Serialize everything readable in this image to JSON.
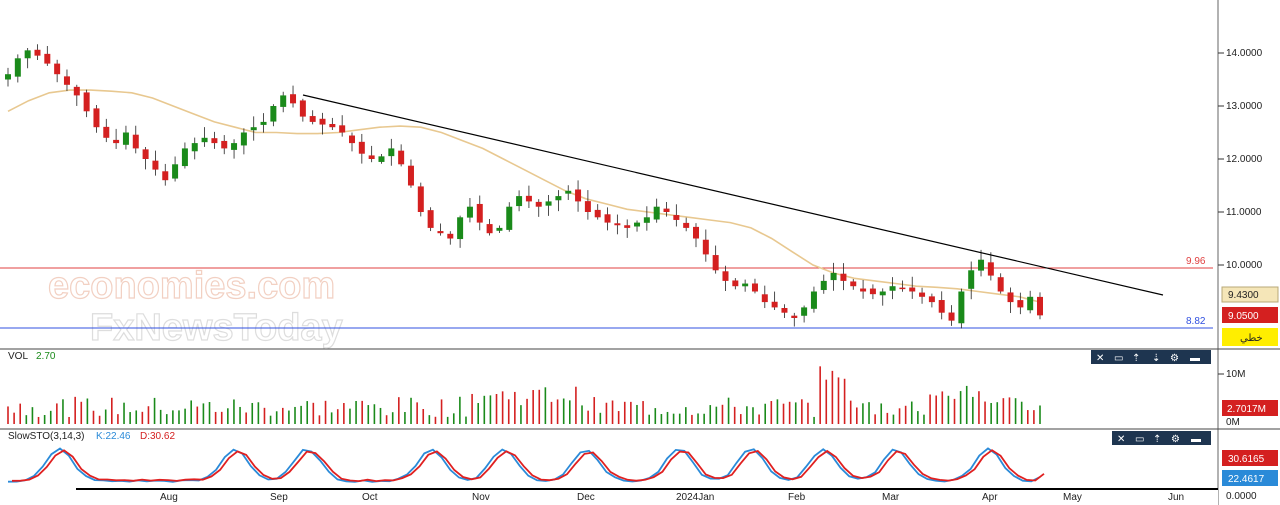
{
  "watermark": {
    "line1": "economies.com",
    "line2": "FxNewsToday"
  },
  "price_axis": {
    "ticks": [
      "14.0000",
      "13.0000",
      "12.0000",
      "11.0000",
      "10.0000"
    ],
    "last_price": "9.4300",
    "current_price": "9.0500",
    "tool_label": "خطي"
  },
  "levels": {
    "resistance": "9.96",
    "support": "8.82"
  },
  "time_axis": [
    "Aug",
    "Sep",
    "Oct",
    "Nov",
    "Dec",
    "2024Jan",
    "Feb",
    "Mar",
    "Apr",
    "May",
    "Jun"
  ],
  "volume_panel": {
    "title": "VOL",
    "value": "2.70",
    "axis_top": "10M",
    "axis_zero": "0M",
    "current": "2.7017M"
  },
  "stochastic_panel": {
    "title": "SlowSTO(3,14,3)",
    "k_text": "K:22.46",
    "d_text": "D:30.62",
    "d_value": "30.6165",
    "k_value": "22.4617",
    "axis_zero": "0.0000"
  },
  "colors": {
    "bull": "#1a8a1a",
    "bear": "#d42020",
    "ma": "#e8c890",
    "resistance": "#e04040",
    "support": "#3050e0",
    "k_line": "#2a8ad8",
    "d_line": "#e02020",
    "toolbar": "#1e3550"
  },
  "chart_data": {
    "type": "candlestick",
    "y_range": [
      8.6,
      14.3
    ],
    "close_path": [
      13.6,
      13.9,
      14.05,
      13.95,
      13.8,
      13.6,
      13.4,
      13.2,
      12.9,
      12.6,
      12.4,
      12.3,
      12.5,
      12.2,
      12.0,
      11.8,
      11.6,
      11.9,
      12.2,
      12.3,
      12.4,
      12.3,
      12.2,
      12.3,
      12.5,
      12.6,
      12.7,
      13.0,
      13.2,
      13.05,
      12.8,
      12.7,
      12.65,
      12.6,
      12.5,
      12.3,
      12.1,
      12.0,
      12.05,
      12.2,
      11.9,
      11.5,
      11.0,
      10.7,
      10.6,
      10.5,
      10.9,
      11.1,
      10.8,
      10.6,
      10.7,
      11.1,
      11.3,
      11.2,
      11.1,
      11.2,
      11.3,
      11.4,
      11.2,
      11.0,
      10.9,
      10.8,
      10.75,
      10.7,
      10.8,
      10.9,
      11.1,
      11.0,
      10.85,
      10.7,
      10.5,
      10.2,
      9.9,
      9.7,
      9.6,
      9.65,
      9.5,
      9.3,
      9.2,
      9.1,
      9.0,
      9.2,
      9.5,
      9.7,
      9.85,
      9.7,
      9.6,
      9.5,
      9.45,
      9.5,
      9.6,
      9.55,
      9.5,
      9.4,
      9.3,
      9.1,
      8.95,
      9.5,
      9.9,
      10.1,
      9.8,
      9.5,
      9.3,
      9.2,
      9.4,
      9.05
    ],
    "ma_path": [
      12.9,
      13.1,
      13.25,
      13.3,
      13.3,
      13.28,
      13.25,
      13.15,
      13.0,
      12.85,
      12.7,
      12.6,
      12.5,
      12.5,
      12.48,
      12.48,
      12.5,
      12.55,
      12.6,
      12.62,
      12.6,
      12.5,
      12.35,
      12.2,
      12.0,
      11.8,
      11.6,
      11.4,
      11.25,
      11.15,
      11.05,
      11.0,
      10.95,
      10.9,
      10.85,
      10.8,
      10.7,
      10.5,
      10.25,
      10.0,
      9.85,
      9.75,
      9.7,
      9.65,
      9.6,
      9.58,
      9.55,
      9.5,
      9.45,
      9.4,
      9.3
    ],
    "trendline": {
      "start": [
        "2023-09",
        13.25
      ],
      "end": [
        "2024-05",
        9.5
      ]
    },
    "volume_max": "10M",
    "stochastic": {
      "k_last": 22.46,
      "d_last": 30.62
    }
  }
}
